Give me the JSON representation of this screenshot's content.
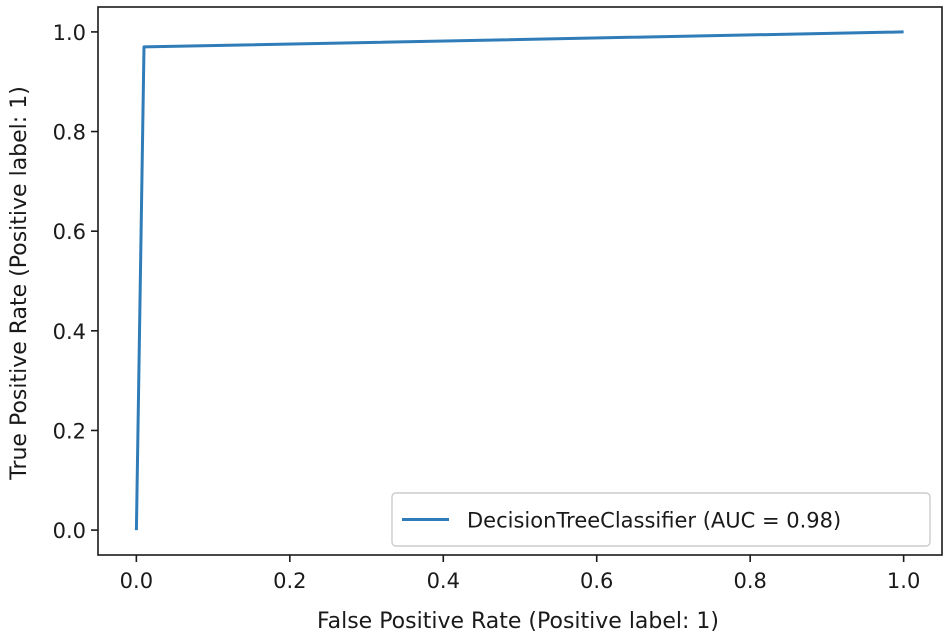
{
  "chart_data": {
    "type": "line",
    "title": "",
    "xlabel": "False Positive Rate (Positive label: 1)",
    "ylabel": "True Positive Rate (Positive label: 1)",
    "xlim": [
      -0.05,
      1.05
    ],
    "ylim": [
      -0.05,
      1.05
    ],
    "xticks": [
      0.0,
      0.2,
      0.4,
      0.6,
      0.8,
      1.0
    ],
    "xtick_labels": [
      "0.0",
      "0.2",
      "0.4",
      "0.6",
      "0.8",
      "1.0"
    ],
    "yticks": [
      0.0,
      0.2,
      0.4,
      0.6,
      0.8,
      1.0
    ],
    "ytick_labels": [
      "0.0",
      "0.2",
      "0.4",
      "0.6",
      "0.8",
      "1.0"
    ],
    "grid": false,
    "legend_position": "lower-right",
    "series": [
      {
        "name": "DecisionTreeClassifier (AUC = 0.98)",
        "color": "#2f7cb8",
        "x": [
          0.0,
          0.01,
          1.0
        ],
        "y": [
          0.0,
          0.97,
          1.0
        ]
      }
    ]
  }
}
